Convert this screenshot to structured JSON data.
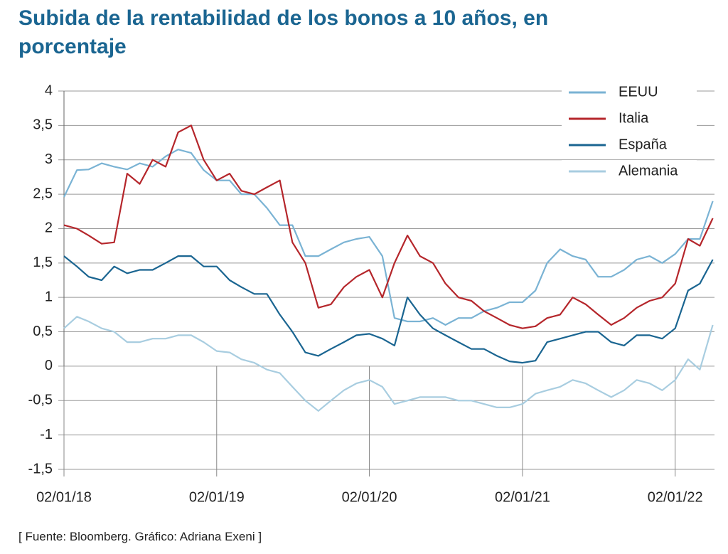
{
  "chart_data": {
    "type": "line",
    "title": "Subida de la rentabilidad de los bonos a 10 años, en porcentaje",
    "source": "[ Fuente: Bloomberg. Gráfico: Adriana Exeni ]",
    "x": [
      "02/01/18",
      "02/02/18",
      "02/03/18",
      "02/04/18",
      "02/05/18",
      "02/06/18",
      "02/07/18",
      "02/08/18",
      "02/09/18",
      "02/10/18",
      "02/11/18",
      "02/12/18",
      "02/01/19",
      "02/02/19",
      "02/03/19",
      "02/04/19",
      "02/05/19",
      "02/06/19",
      "02/07/19",
      "02/08/19",
      "02/09/19",
      "02/10/19",
      "02/11/19",
      "02/12/19",
      "02/01/20",
      "02/02/20",
      "02/03/20",
      "02/04/20",
      "02/05/20",
      "02/06/20",
      "02/07/20",
      "02/08/20",
      "02/09/20",
      "02/10/20",
      "02/11/20",
      "02/12/20",
      "02/01/21",
      "02/02/21",
      "02/03/21",
      "02/04/21",
      "02/05/21",
      "02/06/21",
      "02/07/21",
      "02/08/21",
      "02/09/21",
      "02/10/21",
      "02/11/21",
      "02/12/21",
      "02/01/22",
      "02/02/22",
      "02/03/22",
      "02/04/22"
    ],
    "series": [
      {
        "name": "EEUU",
        "color": "#7ab3d4",
        "values": [
          2.46,
          2.85,
          2.86,
          2.95,
          2.9,
          2.86,
          2.95,
          2.9,
          3.05,
          3.15,
          3.1,
          2.85,
          2.7,
          2.7,
          2.5,
          2.5,
          2.3,
          2.05,
          2.05,
          1.6,
          1.6,
          1.7,
          1.8,
          1.85,
          1.88,
          1.6,
          0.7,
          0.65,
          0.65,
          0.7,
          0.6,
          0.7,
          0.7,
          0.8,
          0.85,
          0.93,
          0.93,
          1.1,
          1.5,
          1.7,
          1.6,
          1.55,
          1.3,
          1.3,
          1.4,
          1.55,
          1.6,
          1.5,
          1.63,
          1.85,
          1.85,
          2.4
        ]
      },
      {
        "name": "Italia",
        "color": "#b5262b",
        "values": [
          2.05,
          2.0,
          1.9,
          1.78,
          1.8,
          2.8,
          2.65,
          3.0,
          2.9,
          3.4,
          3.5,
          3.0,
          2.7,
          2.8,
          2.55,
          2.5,
          2.6,
          2.7,
          1.8,
          1.5,
          0.85,
          0.9,
          1.15,
          1.3,
          1.4,
          1.0,
          1.5,
          1.9,
          1.6,
          1.5,
          1.2,
          1.0,
          0.95,
          0.8,
          0.7,
          0.6,
          0.55,
          0.58,
          0.7,
          0.75,
          1.0,
          0.9,
          0.75,
          0.6,
          0.7,
          0.85,
          0.95,
          1.0,
          1.2,
          1.85,
          1.75,
          2.15
        ]
      },
      {
        "name": "España",
        "color": "#1a6591",
        "values": [
          1.6,
          1.45,
          1.3,
          1.25,
          1.45,
          1.35,
          1.4,
          1.4,
          1.5,
          1.6,
          1.6,
          1.45,
          1.45,
          1.25,
          1.15,
          1.05,
          1.05,
          0.75,
          0.5,
          0.2,
          0.15,
          0.25,
          0.35,
          0.45,
          0.47,
          0.4,
          0.3,
          1.0,
          0.75,
          0.55,
          0.45,
          0.35,
          0.25,
          0.25,
          0.15,
          0.07,
          0.05,
          0.08,
          0.35,
          0.4,
          0.45,
          0.5,
          0.5,
          0.35,
          0.3,
          0.45,
          0.45,
          0.4,
          0.55,
          1.1,
          1.2,
          1.55
        ]
      },
      {
        "name": "Alemania",
        "color": "#a8cde0",
        "values": [
          0.55,
          0.72,
          0.65,
          0.55,
          0.5,
          0.35,
          0.35,
          0.4,
          0.4,
          0.45,
          0.45,
          0.35,
          0.22,
          0.2,
          0.1,
          0.05,
          -0.05,
          -0.1,
          -0.3,
          -0.5,
          -0.65,
          -0.5,
          -0.35,
          -0.25,
          -0.2,
          -0.3,
          -0.55,
          -0.5,
          -0.45,
          -0.45,
          -0.45,
          -0.5,
          -0.5,
          -0.55,
          -0.6,
          -0.6,
          -0.55,
          -0.4,
          -0.35,
          -0.3,
          -0.2,
          -0.25,
          -0.35,
          -0.45,
          -0.35,
          -0.2,
          -0.25,
          -0.35,
          -0.2,
          0.1,
          -0.05,
          0.6
        ]
      }
    ],
    "xlim": [
      "02/01/18",
      "06/04/22"
    ],
    "xticks": [
      "02/01/18",
      "02/01/19",
      "02/01/20",
      "02/01/21",
      "02/01/22"
    ],
    "ylim": [
      -1.5,
      4
    ],
    "yticks": [
      {
        "value": -1.5,
        "label": "-1,5"
      },
      -1,
      {
        "value": -0.5,
        "label": "-0,5"
      },
      0,
      {
        "value": 0.5,
        "label": "0,5"
      },
      1,
      {
        "value": 1.5,
        "label": "1,5"
      },
      2,
      {
        "value": 2.5,
        "label": "2,5"
      },
      3,
      {
        "value": 3.5,
        "label": "3,5"
      },
      4
    ],
    "grid": true,
    "legend": "top-right"
  }
}
